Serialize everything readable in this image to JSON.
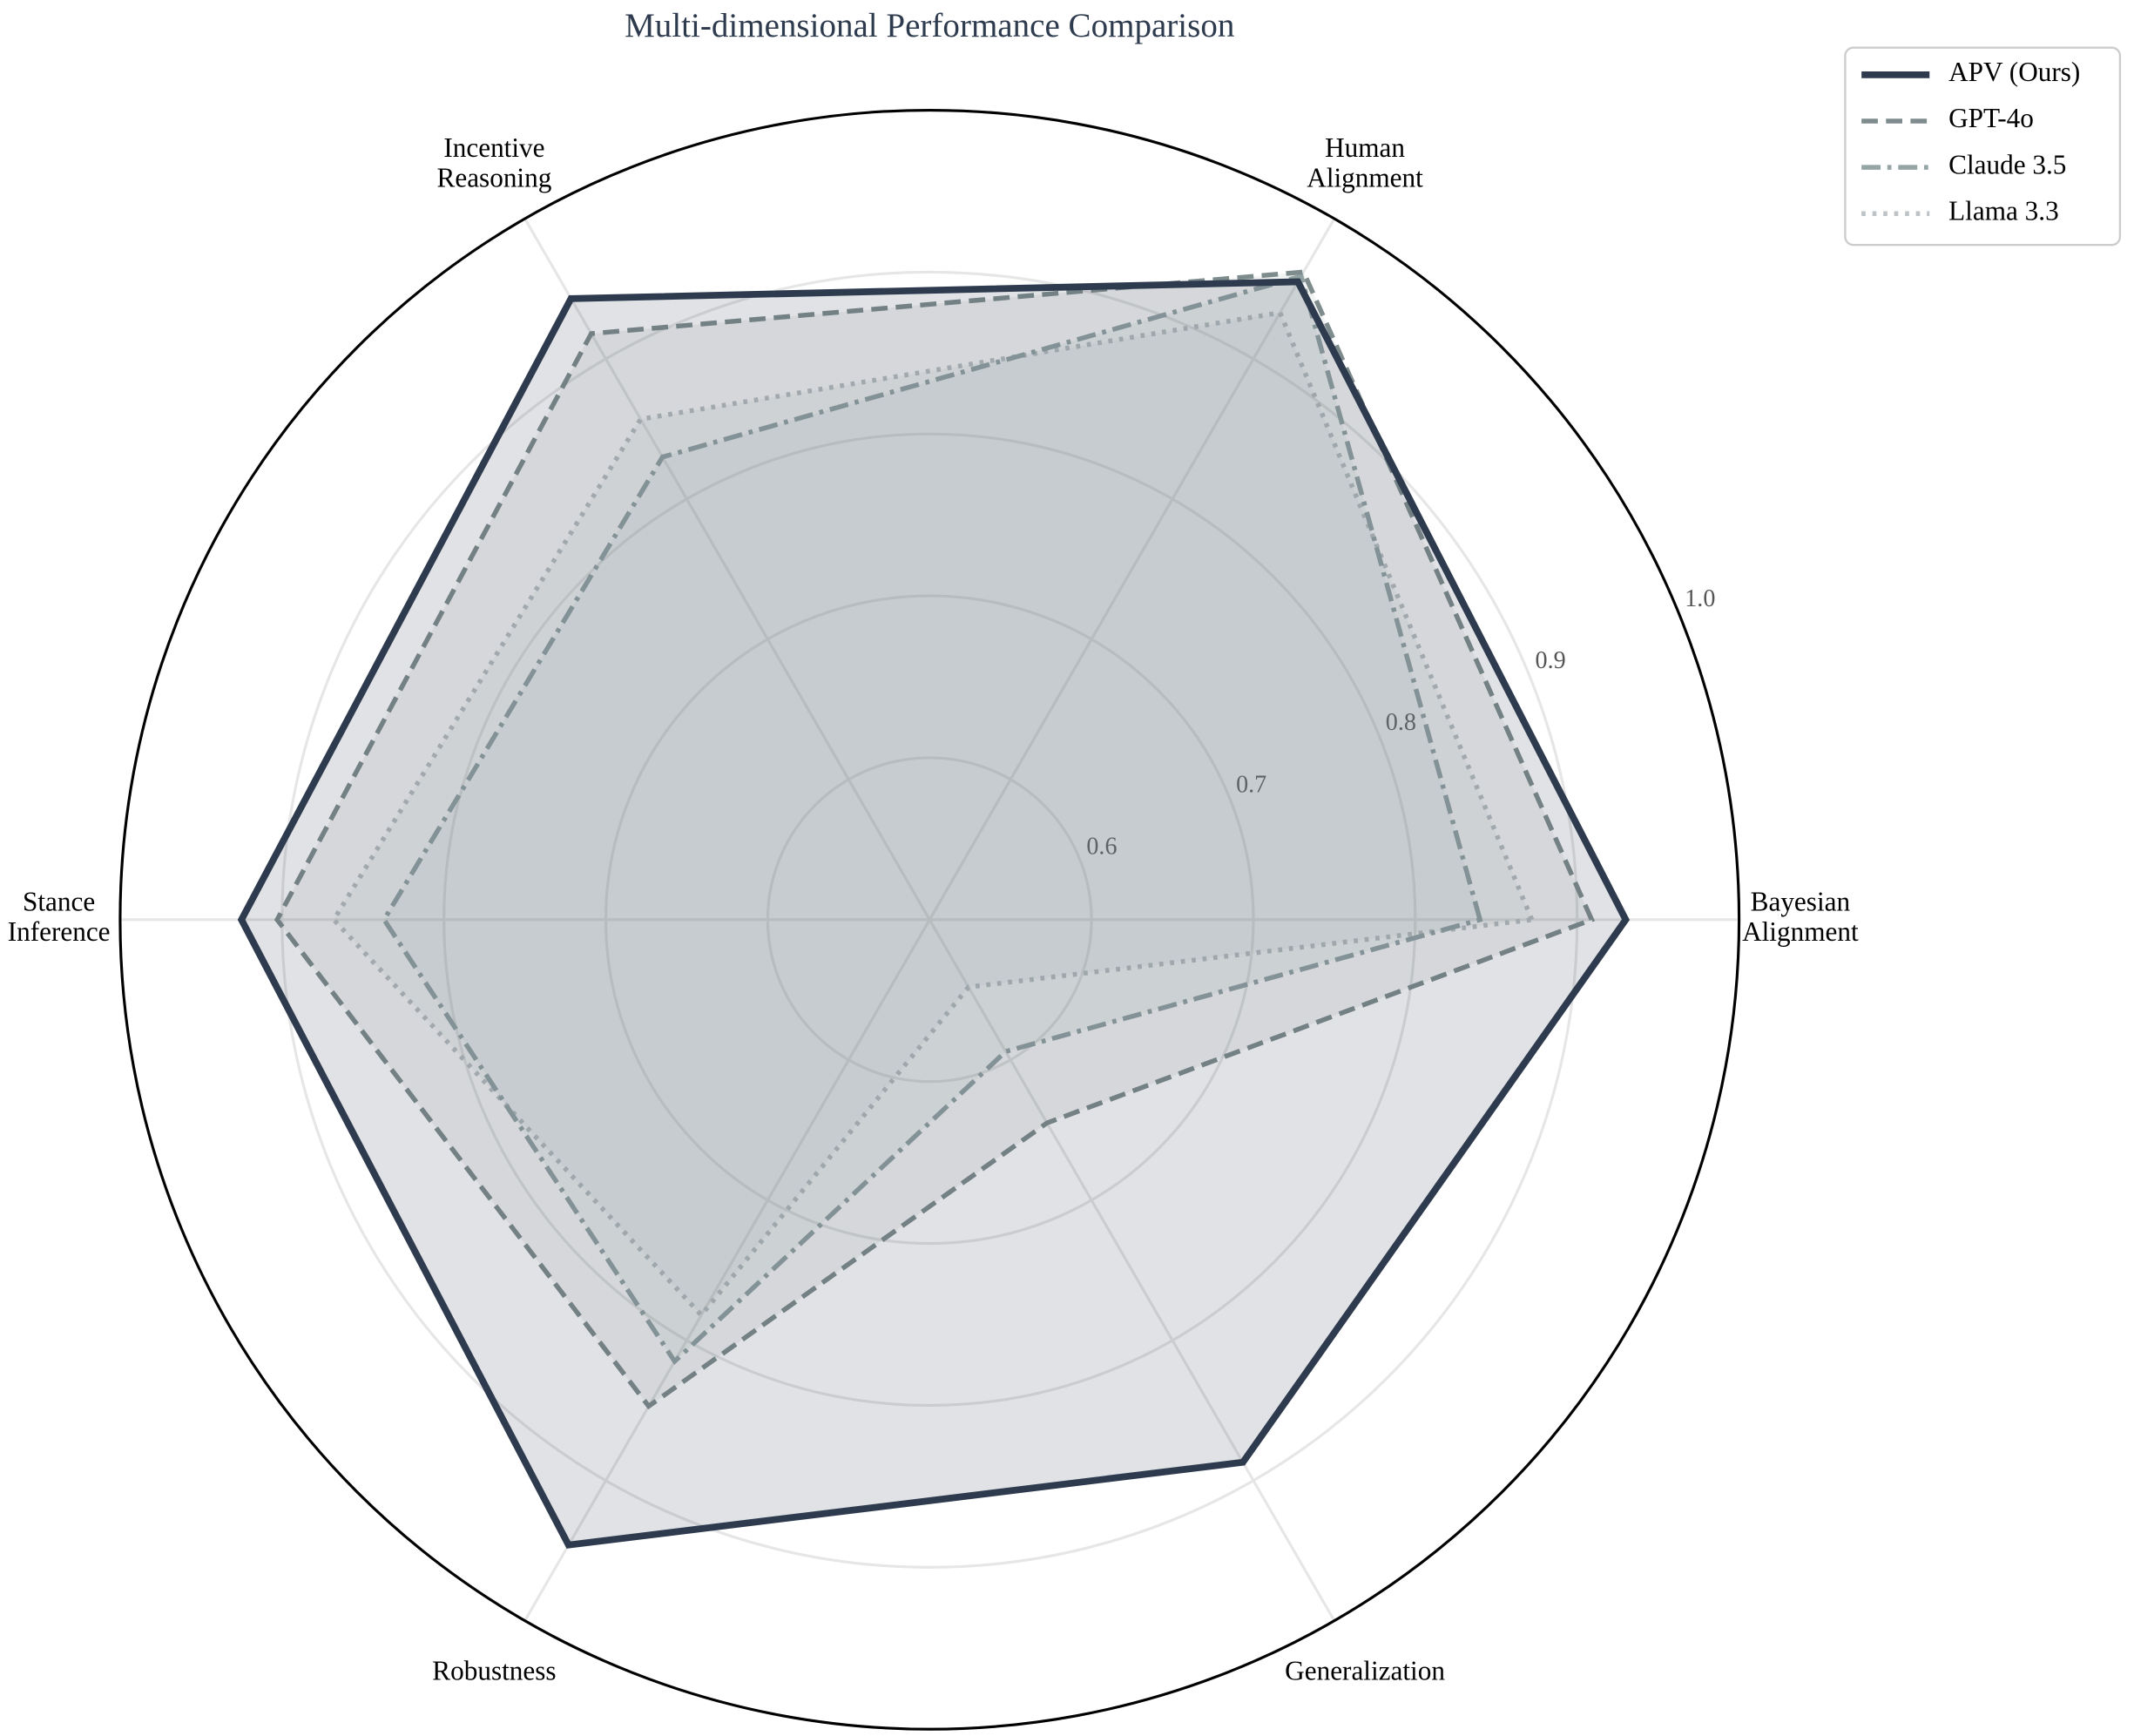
{
  "chart_data": {
    "type": "radar",
    "title": "Multi-dimensional Performance Comparison",
    "categories": [
      "Bayesian Alignment",
      "Human Alignment",
      "Incentive Reasoning",
      "Stance Inference",
      "Robustness",
      "Generalization"
    ],
    "ylim": [
      0.5,
      1.0
    ],
    "yticks": [
      0.6,
      0.7,
      0.8,
      0.9,
      {
        "value": 1.0,
        "label": "1.0"
      }
    ],
    "grid": true,
    "legend": "upper right",
    "series": [
      {
        "name": "APV (Ours)",
        "color": "#2e3b4e",
        "dash": "solid",
        "values": [
          0.93,
          0.955,
          0.943,
          0.925,
          0.946,
          0.887
        ]
      },
      {
        "name": "GPT-4o",
        "color": "#7f8c8d",
        "dash": "dashed",
        "values": [
          0.909,
          0.962,
          0.918,
          0.903,
          0.847,
          0.645
        ]
      },
      {
        "name": "Claude 3.5",
        "color": "#95a5a6",
        "dash": "dashdot",
        "values": [
          0.84,
          0.959,
          0.83,
          0.837,
          0.815,
          0.594
        ]
      },
      {
        "name": "Llama 3.3",
        "color": "#bdc3c7",
        "dash": "dotted",
        "values": [
          0.872,
          0.933,
          0.857,
          0.868,
          0.782,
          0.548
        ]
      }
    ]
  }
}
